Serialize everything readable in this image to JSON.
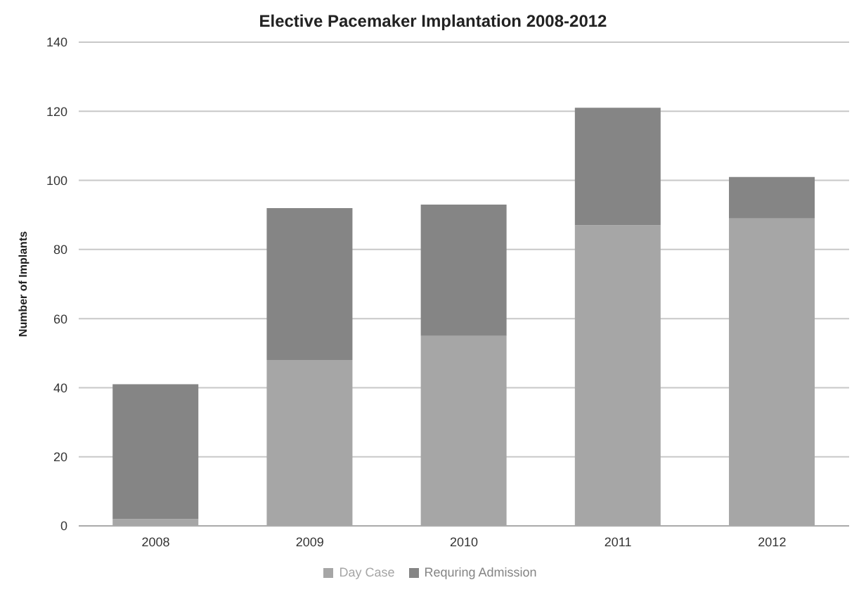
{
  "chart_data": {
    "type": "bar",
    "title": "Elective Pacemaker Implantation 2008-2012",
    "ylabel": "Number of Implants",
    "categories": [
      "2008",
      "2009",
      "2010",
      "2011",
      "2012"
    ],
    "series": [
      {
        "name": "Day Case",
        "color": "#a6a6a6",
        "values": [
          2,
          48,
          55,
          87,
          89
        ]
      },
      {
        "name": "Requring Admission",
        "color": "#858585",
        "values": [
          39,
          44,
          38,
          34,
          12
        ]
      }
    ],
    "stacked": true,
    "ylim": [
      0,
      140
    ],
    "yticks": [
      0,
      20,
      40,
      60,
      80,
      100,
      120,
      140
    ],
    "grid": "y",
    "legend": "bottom"
  }
}
